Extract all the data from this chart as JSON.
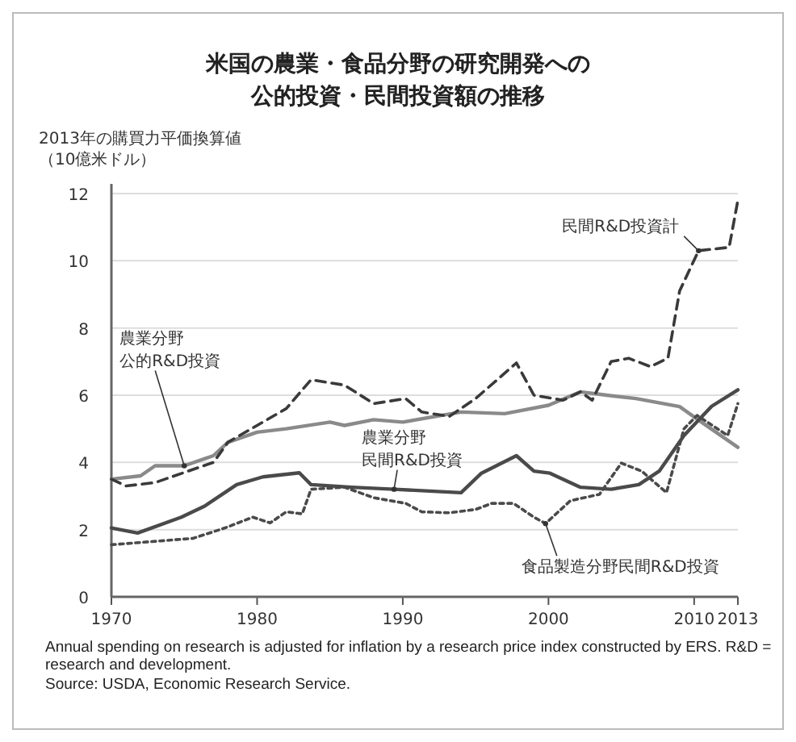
{
  "chart_data": {
    "type": "line",
    "title": "米国の農業・食品分野の研究開発への公的投資・民間投資額の推移",
    "ylabel": "2013年の購買力平価換算値（10億米ドル）",
    "xlim": [
      1970,
      2013
    ],
    "xticks": [
      1970,
      1980,
      1990,
      2000,
      2010,
      2013
    ],
    "ylim": [
      0,
      12
    ],
    "yticks": [
      0,
      2,
      4,
      6,
      8,
      10,
      12
    ],
    "grid": "y",
    "series": [
      {
        "color": "#8a8a8a",
        "line_style": "solid",
        "x": [
          1970,
          1972,
          1973,
          1975,
          1977,
          1978,
          1980,
          1982,
          1985,
          1986,
          1988,
          1990,
          1994,
          1997,
          2000,
          2002.2,
          2004,
          2006,
          2009,
          2010.5,
          2013
        ],
        "values": [
          3.5,
          3.6,
          3.9,
          3.9,
          4.2,
          4.6,
          4.9,
          5.0,
          5.2,
          5.1,
          5.27,
          5.2,
          5.5,
          5.45,
          5.7,
          6.1,
          6.0,
          5.9,
          5.66,
          5.2,
          4.45
        ]
      },
      {
        "color": "#3a3a3a",
        "line_style": "dashed",
        "x": [
          1970,
          1971,
          1973,
          1975,
          1977,
          1978,
          1980,
          1982,
          1983.7,
          1986,
          1988,
          1990.2,
          1991.3,
          1993.2,
          1995,
          1997.8,
          1999,
          2001,
          2002.2,
          2003,
          2004.3,
          2005.5,
          2007,
          2008.2,
          2009,
          2010.3,
          2012.4,
          2013
        ],
        "values": [
          3.5,
          3.3,
          3.4,
          3.7,
          4.0,
          4.6,
          5.1,
          5.6,
          6.46,
          6.3,
          5.75,
          5.9,
          5.5,
          5.37,
          5.9,
          6.96,
          6.0,
          5.85,
          6.1,
          5.85,
          7.0,
          7.1,
          6.85,
          7.1,
          9.1,
          10.3,
          10.4,
          11.8
        ]
      },
      {
        "color": "#4a4a4a",
        "line_style": "solid",
        "x": [
          1970,
          1971.8,
          1974.8,
          1976.4,
          1978.6,
          1980.4,
          1982.9,
          1983.7,
          1986.5,
          1989.4,
          1994,
          1995.4,
          1997.8,
          1999,
          2000.1,
          2002.2,
          2004.3,
          2006.2,
          2007.6,
          2009.3,
          2011.2,
          2013
        ],
        "values": [
          2.05,
          1.9,
          2.37,
          2.7,
          3.34,
          3.57,
          3.69,
          3.34,
          3.26,
          3.2,
          3.1,
          3.68,
          4.2,
          3.74,
          3.68,
          3.26,
          3.2,
          3.34,
          3.74,
          4.8,
          5.67,
          6.16
        ]
      },
      {
        "color": "#4a4a4a",
        "line_style": "dotted",
        "x": [
          1970,
          1975.6,
          1977.8,
          1979.7,
          1980.9,
          1982,
          1983.1,
          1983.7,
          1986,
          1988,
          1990.2,
          1991.3,
          1993.2,
          1995,
          1996.1,
          1997.6,
          1999,
          1999.8,
          2001.5,
          2003.5,
          2005,
          2006.4,
          2008.1,
          2009.3,
          2010.2,
          2012.3,
          2013
        ],
        "values": [
          1.55,
          1.74,
          2.05,
          2.37,
          2.2,
          2.53,
          2.47,
          3.2,
          3.26,
          2.95,
          2.78,
          2.53,
          2.5,
          2.6,
          2.78,
          2.78,
          2.37,
          2.18,
          2.86,
          3.05,
          3.98,
          3.74,
          3.1,
          5.0,
          5.4,
          4.8,
          5.75
        ]
      }
    ],
    "annotations": [
      {
        "text": "民間R&D投資計",
        "x": 2010.3,
        "y": 10.3
      },
      "農業分野",
      {
        "text": "公的R&D投資",
        "x": 1975,
        "y": 3.9
      },
      "農業分野",
      {
        "text": "民間R&D投資",
        "x": 1989.4,
        "y": 3.2
      },
      {
        "text": "食品製造分野民間R&D投資",
        "x": 1999.8,
        "y": 2.18
      },
      "Annual spending on research is adjusted for inflation by a research price index constructed by ERS. R&D = research and development.",
      "Source: USDA, Economic Research Service."
    ]
  }
}
